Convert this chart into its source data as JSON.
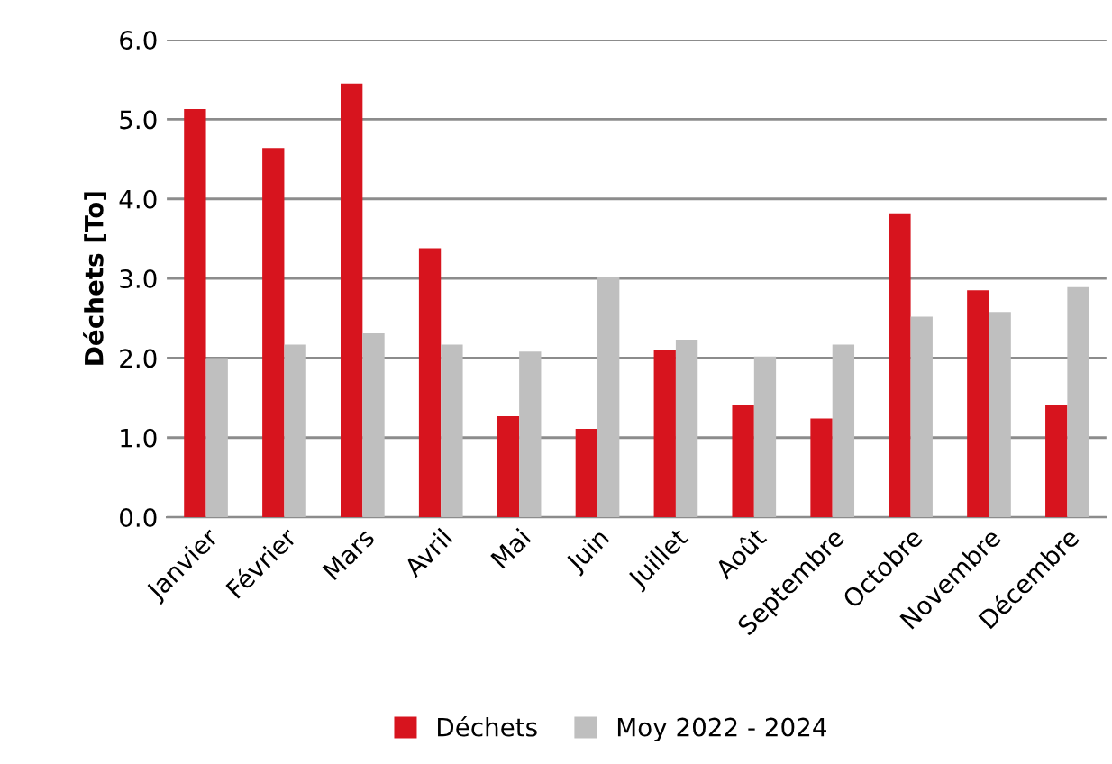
{
  "chart_data": {
    "type": "bar",
    "ylabel": "Déchets [To]",
    "categories": [
      "Janvier",
      "Février",
      "Mars",
      "Avril",
      "Mai",
      "Juin",
      "Juillet",
      "Août",
      "Septembre",
      "Octobre",
      "Novembre",
      "Décembre"
    ],
    "series": [
      {
        "name": "Déchets",
        "color": "#d7141e",
        "values": [
          5.13,
          4.64,
          5.45,
          3.38,
          1.27,
          1.11,
          2.1,
          1.41,
          1.24,
          3.82,
          2.85,
          1.41
        ]
      },
      {
        "name": "Moy 2022 - 2024",
        "color": "#bfbfbf",
        "values": [
          2.0,
          2.17,
          2.31,
          2.17,
          2.08,
          3.02,
          2.23,
          2.02,
          2.17,
          2.52,
          2.58,
          2.89
        ]
      }
    ],
    "ylim": [
      0,
      6
    ],
    "yticks": [
      {
        "value": 0,
        "label": "0.0"
      },
      {
        "value": 1,
        "label": "1.0"
      },
      {
        "value": 2,
        "label": "2.0"
      },
      {
        "value": 3,
        "label": "3.0"
      },
      {
        "value": 4,
        "label": "4.0"
      },
      {
        "value": 5,
        "label": "5.0"
      },
      {
        "value": 6,
        "label": "6.0"
      }
    ],
    "grid": "y",
    "legend": "bottom"
  }
}
